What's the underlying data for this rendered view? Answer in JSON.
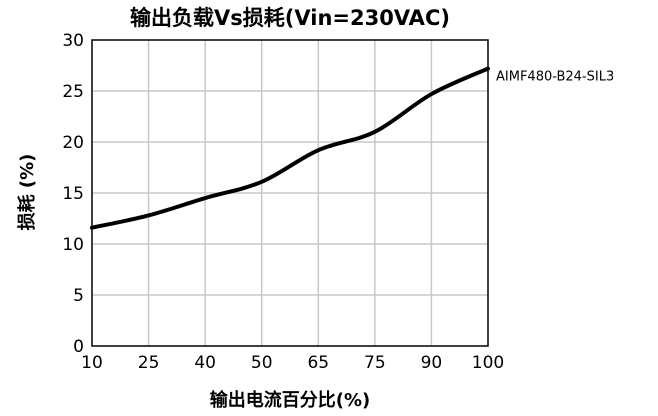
{
  "chart_data": {
    "type": "line",
    "title": "输出负载Vs损耗(Vin=230VAC)",
    "xlabel": "输出电流百分比(%)",
    "ylabel": "损耗 (%)",
    "x_ticks": [
      "10",
      "25",
      "40",
      "50",
      "65",
      "75",
      "90",
      "100"
    ],
    "y_ticks": [
      "0",
      "5",
      "10",
      "15",
      "20",
      "25",
      "30"
    ],
    "ylim": [
      0,
      30
    ],
    "grid": true,
    "series": [
      {
        "name": "AIMF480-B24-SIL3",
        "color": "#000000",
        "x": [
          10,
          25,
          40,
          50,
          65,
          75,
          90,
          100
        ],
        "values": [
          11.6,
          12.8,
          14.5,
          16.1,
          19.2,
          21.0,
          24.7,
          27.2
        ]
      }
    ]
  }
}
